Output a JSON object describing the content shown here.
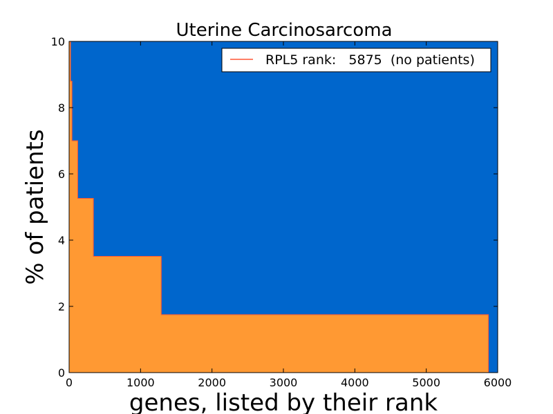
{
  "chart_data": {
    "type": "area",
    "title": "Uterine Carcinosarcoma",
    "xlabel": "genes, listed by their rank",
    "ylabel": "% of patients",
    "xlim": [
      0,
      6000
    ],
    "ylim": [
      0,
      10
    ],
    "x_ticks": [
      0,
      1000,
      2000,
      3000,
      4000,
      5000,
      6000
    ],
    "y_ticks": [
      0,
      2,
      4,
      6,
      8,
      10
    ],
    "grid": false,
    "background_color": "#0066cc",
    "fill_color": "#ff9933",
    "line_color": "#ff5533",
    "legend": {
      "placement": "top-right",
      "label": "RPL5 rank:   5875  (no patients)"
    },
    "series": [
      {
        "x": [
          0,
          20,
          20,
          40,
          40,
          60,
          60,
          120,
          120,
          340,
          340,
          1290,
          1290,
          5870,
          5870
        ],
        "y": [
          10,
          10,
          8.8,
          8.8,
          7.0,
          7.0,
          7.0,
          7.0,
          5.26,
          5.26,
          3.51,
          3.51,
          1.75,
          1.75,
          0
        ]
      }
    ]
  }
}
